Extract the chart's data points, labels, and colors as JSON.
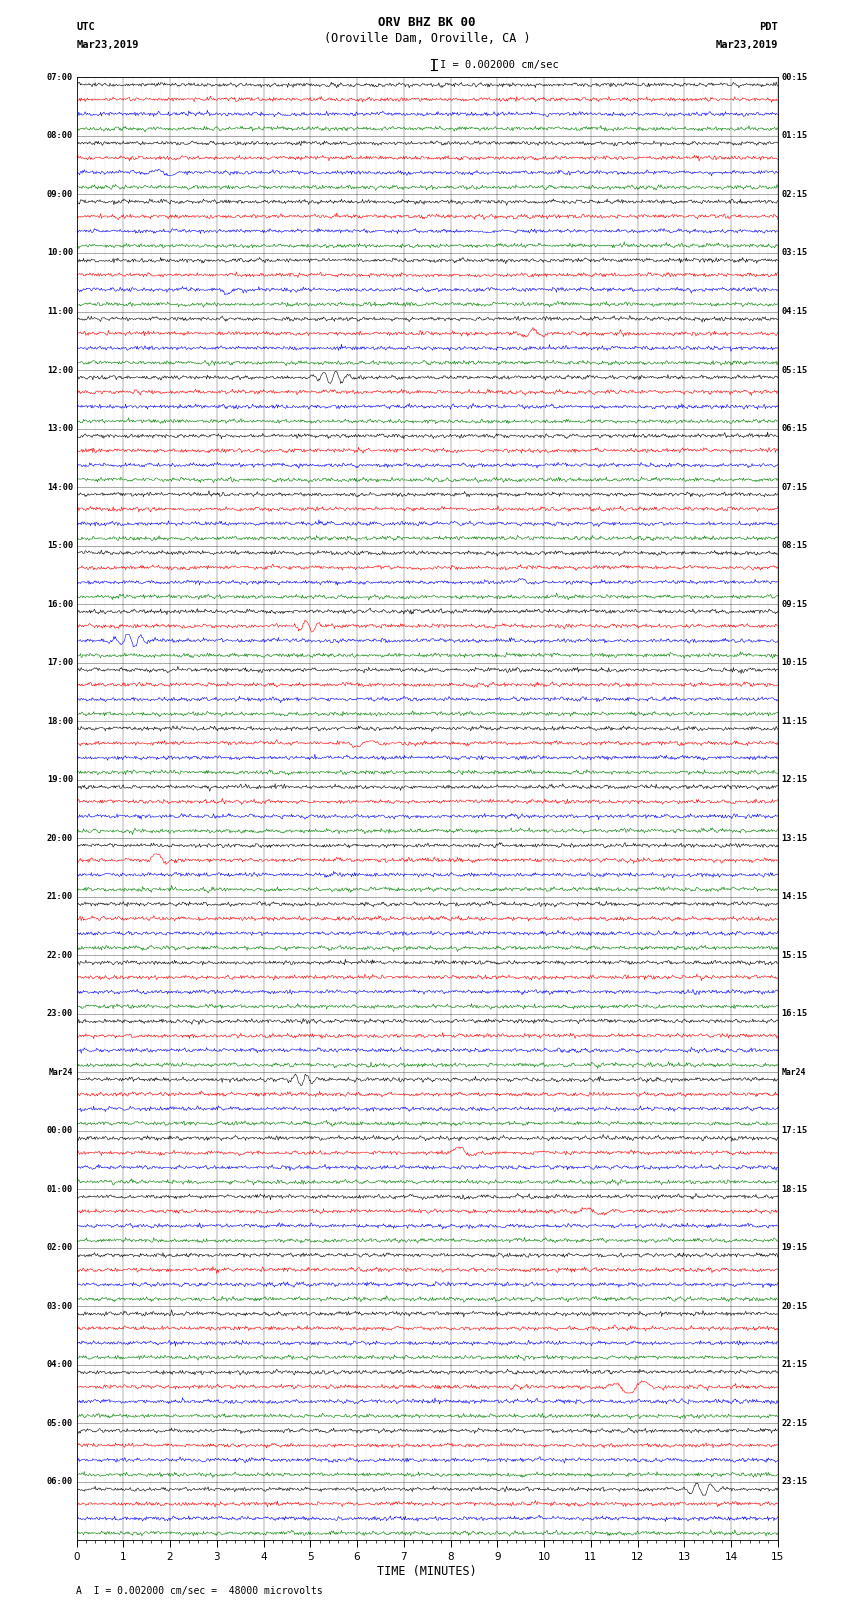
{
  "title_line1": "ORV BHZ BK 00",
  "title_line2": "(Oroville Dam, Oroville, CA )",
  "scale_label": "I = 0.002000 cm/sec",
  "utc_label": "UTC",
  "utc_date": "Mar23,2019",
  "pdt_label": "PDT",
  "pdt_date": "Mar23,2019",
  "xlabel": "TIME (MINUTES)",
  "footer": "A  I = 0.002000 cm/sec =  48000 microvolts",
  "left_times": [
    "07:00",
    "",
    "",
    "",
    "08:00",
    "",
    "",
    "",
    "09:00",
    "",
    "",
    "",
    "10:00",
    "",
    "",
    "",
    "11:00",
    "",
    "",
    "",
    "12:00",
    "",
    "",
    "",
    "13:00",
    "",
    "",
    "",
    "14:00",
    "",
    "",
    "",
    "15:00",
    "",
    "",
    "",
    "16:00",
    "",
    "",
    "",
    "17:00",
    "",
    "",
    "",
    "18:00",
    "",
    "",
    "",
    "19:00",
    "",
    "",
    "",
    "20:00",
    "",
    "",
    "",
    "21:00",
    "",
    "",
    "",
    "22:00",
    "",
    "",
    "",
    "23:00",
    "",
    "",
    "",
    "Mar24",
    "",
    "",
    "",
    "00:00",
    "",
    "",
    "",
    "01:00",
    "",
    "",
    "",
    "02:00",
    "",
    "",
    "",
    "03:00",
    "",
    "",
    "",
    "04:00",
    "",
    "",
    "",
    "05:00",
    "",
    "",
    "",
    "06:00",
    "",
    "",
    ""
  ],
  "right_times": [
    "00:15",
    "",
    "",
    "",
    "01:15",
    "",
    "",
    "",
    "02:15",
    "",
    "",
    "",
    "03:15",
    "",
    "",
    "",
    "04:15",
    "",
    "",
    "",
    "05:15",
    "",
    "",
    "",
    "06:15",
    "",
    "",
    "",
    "07:15",
    "",
    "",
    "",
    "08:15",
    "",
    "",
    "",
    "09:15",
    "",
    "",
    "",
    "10:15",
    "",
    "",
    "",
    "11:15",
    "",
    "",
    "",
    "12:15",
    "",
    "",
    "",
    "13:15",
    "",
    "",
    "",
    "14:15",
    "",
    "",
    "",
    "15:15",
    "",
    "",
    "",
    "16:15",
    "",
    "",
    "",
    "Mar24",
    "",
    "",
    "",
    "17:15",
    "",
    "",
    "",
    "18:15",
    "",
    "",
    "",
    "19:15",
    "",
    "",
    "",
    "20:15",
    "",
    "",
    "",
    "21:15",
    "",
    "",
    "",
    "22:15",
    "",
    "",
    "",
    "23:15",
    "",
    "",
    ""
  ],
  "trace_colors": [
    "black",
    "red",
    "blue",
    "green"
  ],
  "bg_color": "white",
  "x_min": 0,
  "x_max": 15,
  "x_ticks_major": [
    0,
    1,
    2,
    3,
    4,
    5,
    6,
    7,
    8,
    9,
    10,
    11,
    12,
    13,
    14,
    15
  ],
  "noise_scale": 0.3,
  "sampling_rate": 60
}
